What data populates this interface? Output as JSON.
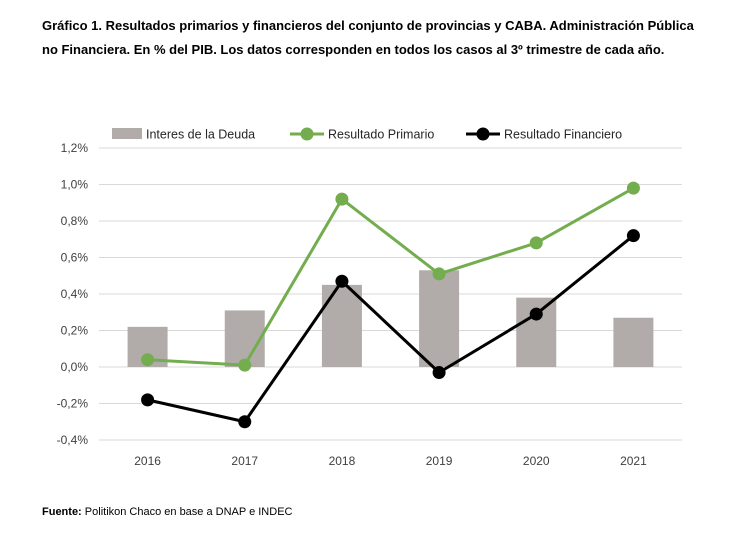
{
  "title": "Gráfico 1. Resultados primarios y financieros del conjunto de provincias y CABA. Administración Pública no Financiera. En % del PIB. Los datos corresponden en todos los casos al 3º trimestre de cada año.",
  "source": {
    "label": "Fuente:",
    "text": " Politikon Chaco en base a DNAP e INDEC"
  },
  "chart_data": {
    "type": "bar+line",
    "title": "",
    "xlabel": "",
    "ylabel": "",
    "categories": [
      "2016",
      "2017",
      "2018",
      "2019",
      "2020",
      "2021"
    ],
    "ylim": [
      -0.4,
      1.2
    ],
    "yticks": [
      -0.4,
      -0.2,
      0.0,
      0.2,
      0.4,
      0.6,
      0.8,
      1.0,
      1.2
    ],
    "ytick_labels": [
      "-0,4%",
      "-0,2%",
      "0,0%",
      "0,2%",
      "0,4%",
      "0,6%",
      "0,8%",
      "1,0%",
      "1,2%"
    ],
    "grid": true,
    "legend_position": "top",
    "series": [
      {
        "name": "Interes de la Deuda",
        "kind": "bar",
        "color": "#b1acaa",
        "values": [
          0.22,
          0.31,
          0.45,
          0.53,
          0.38,
          0.27
        ]
      },
      {
        "name": "Resultado Primario",
        "kind": "line",
        "color": "#73ad4e",
        "values": [
          0.04,
          0.01,
          0.92,
          0.51,
          0.68,
          0.98
        ]
      },
      {
        "name": "Resultado Financiero",
        "kind": "line",
        "color": "#000000",
        "values": [
          -0.18,
          -0.3,
          0.47,
          -0.03,
          0.29,
          0.72
        ]
      }
    ]
  }
}
